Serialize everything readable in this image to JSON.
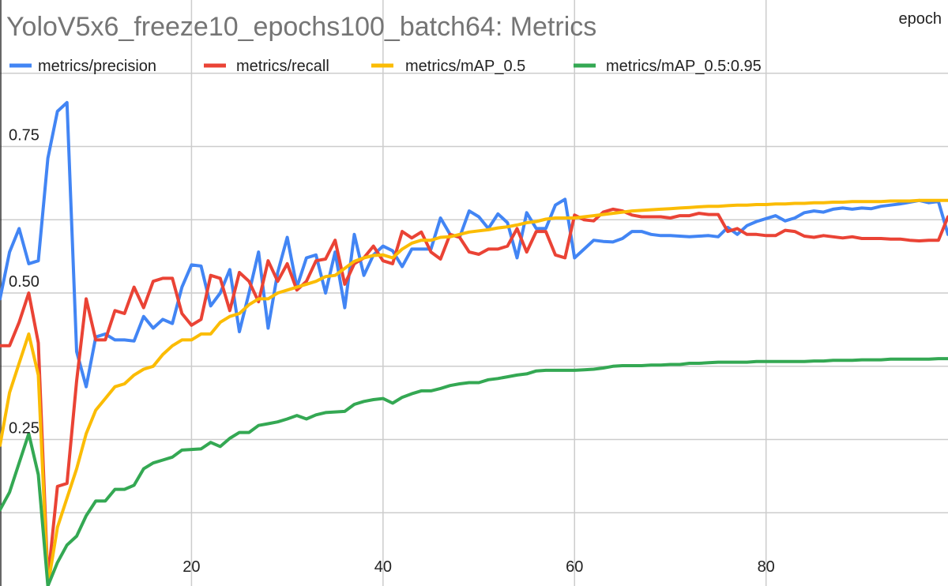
{
  "chart_data": {
    "type": "line",
    "title": "YoloV5x6_freeze10_epochs100_batch64: Metrics",
    "xlabel": "epoch",
    "ylabel": "",
    "xlim": [
      0,
      99
    ],
    "ylim": [
      0.0,
      1.0
    ],
    "grid": true,
    "legend_position": "top",
    "x_ticks": [
      20,
      40,
      60,
      80
    ],
    "x_tick_labels": [
      "20",
      "40",
      "60",
      "80"
    ],
    "y_ticks": [
      0.25,
      0.5,
      0.75
    ],
    "y_tick_labels": [
      "0.25",
      "0.50",
      "0.75"
    ],
    "series": [
      {
        "name": "metrics/precision",
        "color": "#4285f4",
        "values": [
          0.49,
          0.57,
          0.61,
          0.55,
          0.555,
          0.73,
          0.81,
          0.825,
          0.4,
          0.34,
          0.425,
          0.43,
          0.42,
          0.42,
          0.418,
          0.46,
          0.44,
          0.455,
          0.448,
          0.51,
          0.548,
          0.546,
          0.478,
          0.5,
          0.54,
          0.434,
          0.5,
          0.57,
          0.44,
          0.535,
          0.595,
          0.51,
          0.56,
          0.565,
          0.5,
          0.57,
          0.475,
          0.6,
          0.53,
          0.565,
          0.58,
          0.572,
          0.545,
          0.575,
          0.575,
          0.575,
          0.628,
          0.6,
          0.595,
          0.64,
          0.63,
          0.61,
          0.635,
          0.62,
          0.56,
          0.637,
          0.61,
          0.61,
          0.65,
          0.66,
          0.56,
          0.575,
          0.59,
          0.588,
          0.587,
          0.593,
          0.605,
          0.605,
          0.6,
          0.598,
          0.598,
          0.597,
          0.596,
          0.597,
          0.598,
          0.596,
          0.612,
          0.6,
          0.615,
          0.622,
          0.627,
          0.632,
          0.623,
          0.628,
          0.637,
          0.64,
          0.638,
          0.643,
          0.645,
          0.643,
          0.645,
          0.644,
          0.648,
          0.65,
          0.652,
          0.655,
          0.658,
          0.654,
          0.656,
          0.6
        ]
      },
      {
        "name": "metrics/recall",
        "color": "#ea4335",
        "values": [
          0.41,
          0.41,
          0.45,
          0.5,
          0.415,
          0.01,
          0.17,
          0.175,
          0.35,
          0.49,
          0.42,
          0.42,
          0.47,
          0.465,
          0.51,
          0.475,
          0.52,
          0.525,
          0.525,
          0.465,
          0.445,
          0.455,
          0.53,
          0.525,
          0.47,
          0.535,
          0.52,
          0.485,
          0.555,
          0.52,
          0.55,
          0.505,
          0.52,
          0.555,
          0.558,
          0.59,
          0.515,
          0.55,
          0.56,
          0.58,
          0.555,
          0.55,
          0.605,
          0.594,
          0.604,
          0.57,
          0.558,
          0.6,
          0.595,
          0.57,
          0.566,
          0.575,
          0.575,
          0.58,
          0.61,
          0.57,
          0.605,
          0.605,
          0.565,
          0.56,
          0.633,
          0.625,
          0.623,
          0.638,
          0.643,
          0.64,
          0.633,
          0.63,
          0.63,
          0.63,
          0.628,
          0.632,
          0.632,
          0.636,
          0.634,
          0.634,
          0.605,
          0.61,
          0.6,
          0.6,
          0.598,
          0.598,
          0.607,
          0.605,
          0.597,
          0.595,
          0.598,
          0.596,
          0.594,
          0.596,
          0.593,
          0.593,
          0.593,
          0.592,
          0.592,
          0.59,
          0.589,
          0.59,
          0.59,
          0.63
        ]
      },
      {
        "name": "metrics/mAP_0.5",
        "color": "#fbbc04",
        "values": [
          0.24,
          0.33,
          0.38,
          0.43,
          0.36,
          0.0,
          0.1,
          0.15,
          0.2,
          0.26,
          0.3,
          0.32,
          0.34,
          0.345,
          0.36,
          0.37,
          0.375,
          0.395,
          0.41,
          0.42,
          0.42,
          0.43,
          0.43,
          0.45,
          0.46,
          0.465,
          0.48,
          0.49,
          0.49,
          0.5,
          0.505,
          0.51,
          0.515,
          0.52,
          0.528,
          0.53,
          0.542,
          0.554,
          0.56,
          0.564,
          0.565,
          0.56,
          0.575,
          0.585,
          0.59,
          0.59,
          0.595,
          0.596,
          0.6,
          0.604,
          0.606,
          0.608,
          0.611,
          0.613,
          0.616,
          0.62,
          0.622,
          0.626,
          0.628,
          0.628,
          0.628,
          0.63,
          0.632,
          0.634,
          0.636,
          0.638,
          0.64,
          0.641,
          0.642,
          0.643,
          0.644,
          0.645,
          0.646,
          0.647,
          0.648,
          0.648,
          0.649,
          0.65,
          0.65,
          0.651,
          0.651,
          0.652,
          0.652,
          0.653,
          0.653,
          0.654,
          0.654,
          0.655,
          0.655,
          0.656,
          0.656,
          0.656,
          0.656,
          0.657,
          0.657,
          0.657,
          0.658,
          0.658,
          0.658,
          0.658
        ]
      },
      {
        "name": "metrics/mAP_0.5:0.95",
        "color": "#34a853",
        "values": [
          0.13,
          0.16,
          0.21,
          0.26,
          0.19,
          0.0,
          0.04,
          0.07,
          0.085,
          0.12,
          0.145,
          0.145,
          0.165,
          0.165,
          0.172,
          0.2,
          0.21,
          0.215,
          0.22,
          0.232,
          0.233,
          0.234,
          0.245,
          0.238,
          0.252,
          0.262,
          0.262,
          0.274,
          0.277,
          0.28,
          0.285,
          0.291,
          0.285,
          0.292,
          0.296,
          0.297,
          0.298,
          0.31,
          0.315,
          0.318,
          0.32,
          0.312,
          0.322,
          0.328,
          0.333,
          0.333,
          0.337,
          0.342,
          0.345,
          0.347,
          0.347,
          0.352,
          0.354,
          0.357,
          0.36,
          0.362,
          0.367,
          0.368,
          0.368,
          0.368,
          0.368,
          0.369,
          0.37,
          0.372,
          0.375,
          0.376,
          0.376,
          0.376,
          0.377,
          0.377,
          0.378,
          0.378,
          0.38,
          0.38,
          0.381,
          0.382,
          0.382,
          0.382,
          0.382,
          0.383,
          0.383,
          0.383,
          0.383,
          0.383,
          0.383,
          0.384,
          0.384,
          0.385,
          0.385,
          0.385,
          0.386,
          0.386,
          0.386,
          0.387,
          0.387,
          0.387,
          0.387,
          0.387,
          0.388,
          0.388
        ]
      }
    ]
  }
}
